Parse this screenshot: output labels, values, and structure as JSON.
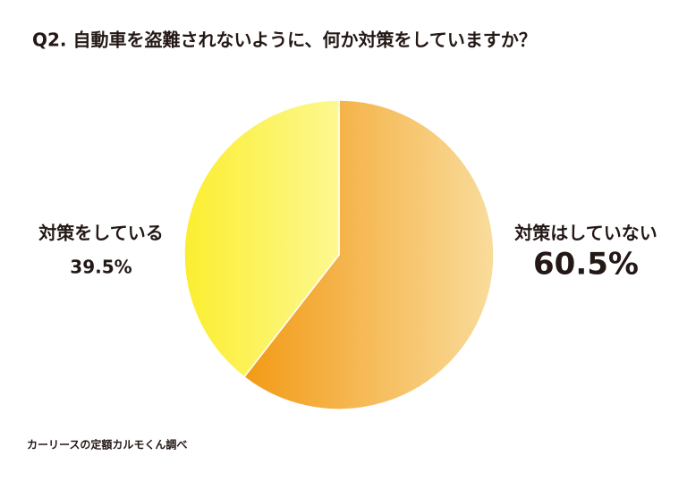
{
  "chart_data": {
    "type": "pie",
    "title": "Q2. 自動車を盗難されないように、何か対策をしていますか？",
    "categories": [
      "対策はしていない",
      "対策をしている"
    ],
    "values": [
      60.5,
      39.5
    ],
    "value_labels": [
      "60.5%",
      "39.5%"
    ],
    "colors": [
      [
        "#f29a16",
        "#f9dc9c"
      ],
      [
        "#fbee30",
        "#fdf890"
      ]
    ],
    "source": "カーリースの定額カルモくん調べ"
  }
}
